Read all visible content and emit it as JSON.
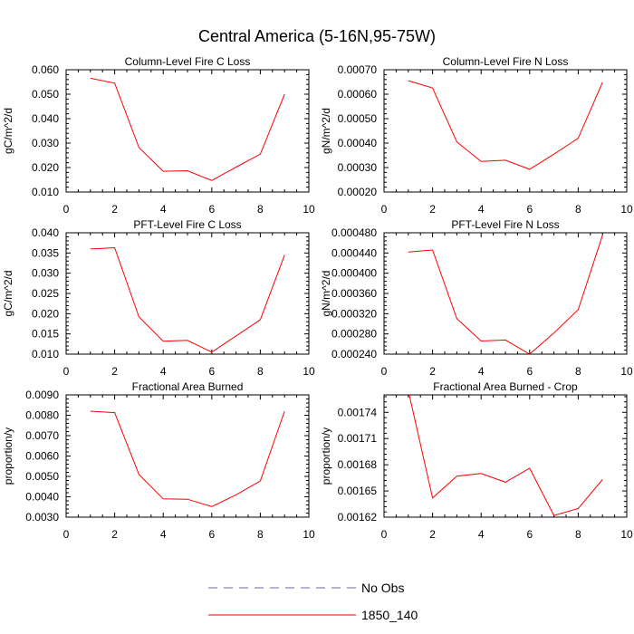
{
  "title": "Central America (5-16N,95-75W)",
  "legend": [
    {
      "label": "No Obs",
      "color": "#6a6aa6",
      "dash": true
    },
    {
      "label": "1850_140",
      "color": "#ff0000",
      "dash": false
    }
  ],
  "chart_data": [
    {
      "type": "line",
      "title": "Column-Level Fire C Loss",
      "ylabel": "gC/m^2/d",
      "xlim": [
        0,
        10
      ],
      "ylim": [
        0.01,
        0.06
      ],
      "xticks": [
        0,
        2,
        4,
        6,
        8,
        10
      ],
      "xticklabels": [
        "0",
        "2",
        "4",
        "6",
        "8",
        "10"
      ],
      "yticks": [
        0.01,
        0.02,
        0.03,
        0.04,
        0.05,
        0.06
      ],
      "yticklabels": [
        "0.010",
        "0.020",
        "0.030",
        "0.040",
        "0.050",
        "0.060"
      ],
      "series": [
        {
          "name": "1850_140",
          "x": [
            1,
            2,
            3,
            4,
            5,
            6,
            7,
            8,
            9
          ],
          "values": [
            0.0565,
            0.0545,
            0.0282,
            0.0185,
            0.0187,
            0.0147,
            0.0202,
            0.0255,
            0.05
          ]
        }
      ]
    },
    {
      "type": "line",
      "title": "Column-Level Fire N Loss",
      "ylabel": "gN/m^2/d",
      "xlim": [
        0,
        10
      ],
      "ylim": [
        0.0002,
        0.0007
      ],
      "xticks": [
        0,
        2,
        4,
        6,
        8,
        10
      ],
      "xticklabels": [
        "0",
        "2",
        "4",
        "6",
        "8",
        "10"
      ],
      "yticks": [
        0.0002,
        0.0003,
        0.0004,
        0.0005,
        0.0006,
        0.0007
      ],
      "yticklabels": [
        "0.00020",
        "0.00030",
        "0.00040",
        "0.00050",
        "0.00060",
        "0.00070"
      ],
      "series": [
        {
          "name": "1850_140",
          "x": [
            1,
            2,
            3,
            4,
            5,
            6,
            7,
            8,
            9
          ],
          "values": [
            0.000655,
            0.000625,
            0.000405,
            0.000325,
            0.00033,
            0.000293,
            0.000355,
            0.00042,
            0.000648
          ]
        }
      ]
    },
    {
      "type": "line",
      "title": "PFT-Level Fire C Loss",
      "ylabel": "gC/m^2/d",
      "xlim": [
        0,
        10
      ],
      "ylim": [
        0.01,
        0.04
      ],
      "xticks": [
        0,
        2,
        4,
        6,
        8,
        10
      ],
      "xticklabels": [
        "0",
        "2",
        "4",
        "6",
        "8",
        "10"
      ],
      "yticks": [
        0.01,
        0.015,
        0.02,
        0.025,
        0.03,
        0.035,
        0.04
      ],
      "yticklabels": [
        "0.010",
        "0.015",
        "0.020",
        "0.025",
        "0.030",
        "0.035",
        "0.040"
      ],
      "series": [
        {
          "name": "1850_140",
          "x": [
            1,
            2,
            3,
            4,
            5,
            6,
            7,
            8,
            9
          ],
          "values": [
            0.036,
            0.0363,
            0.0192,
            0.0132,
            0.0134,
            0.0105,
            0.0145,
            0.0185,
            0.0345
          ]
        }
      ]
    },
    {
      "type": "line",
      "title": "PFT-Level Fire N Loss",
      "ylabel": "gN/m^2/d",
      "xlim": [
        0,
        10
      ],
      "ylim": [
        0.00024,
        0.00048
      ],
      "xticks": [
        0,
        2,
        4,
        6,
        8,
        10
      ],
      "xticklabels": [
        "0",
        "2",
        "4",
        "6",
        "8",
        "10"
      ],
      "yticks": [
        0.00024,
        0.00028,
        0.00032,
        0.00036,
        0.0004,
        0.00044,
        0.00048
      ],
      "yticklabels": [
        "0.000240",
        "0.000280",
        "0.000320",
        "0.000360",
        "0.000400",
        "0.000440",
        "0.000480"
      ],
      "series": [
        {
          "name": "1850_140",
          "x": [
            1,
            2,
            3,
            4,
            5,
            6,
            7,
            8,
            9
          ],
          "values": [
            0.000442,
            0.000446,
            0.00031,
            0.000266,
            0.000268,
            0.00024,
            0.000282,
            0.000328,
            0.000475
          ]
        }
      ]
    },
    {
      "type": "line",
      "title": "Fractional Area Burned",
      "ylabel": "proportion/y",
      "xlim": [
        0,
        10
      ],
      "ylim": [
        0.003,
        0.009
      ],
      "xticks": [
        0,
        2,
        4,
        6,
        8,
        10
      ],
      "xticklabels": [
        "0",
        "2",
        "4",
        "6",
        "8",
        "10"
      ],
      "yticks": [
        0.003,
        0.004,
        0.005,
        0.006,
        0.007,
        0.008,
        0.009
      ],
      "yticklabels": [
        "0.0030",
        "0.0040",
        "0.0050",
        "0.0060",
        "0.0070",
        "0.0080",
        "0.0090"
      ],
      "series": [
        {
          "name": "1850_140",
          "x": [
            1,
            2,
            3,
            4,
            5,
            6,
            7,
            8,
            9
          ],
          "values": [
            0.0082,
            0.00813,
            0.0051,
            0.0039,
            0.00388,
            0.00352,
            0.0041,
            0.00478,
            0.0082
          ]
        }
      ]
    },
    {
      "type": "line",
      "title": "Fractional Area Burned - Crop",
      "ylabel": "proportion/y",
      "xlim": [
        0,
        10
      ],
      "ylim": [
        0.00162,
        0.00176
      ],
      "xticks": [
        0,
        2,
        4,
        6,
        8,
        10
      ],
      "xticklabels": [
        "0",
        "2",
        "4",
        "6",
        "8",
        "10"
      ],
      "yticks": [
        0.00162,
        0.00165,
        0.00168,
        0.00171,
        0.00174
      ],
      "yticklabels": [
        "0.00162",
        "0.00165",
        "0.00168",
        "0.00171",
        "0.00174"
      ],
      "series": [
        {
          "name": "1850_140",
          "x": [
            1,
            2,
            3,
            4,
            5,
            6,
            7,
            8,
            9
          ],
          "values": [
            0.001765,
            0.001642,
            0.001667,
            0.00167,
            0.00166,
            0.001676,
            0.001622,
            0.00163,
            0.001663
          ]
        }
      ]
    }
  ]
}
